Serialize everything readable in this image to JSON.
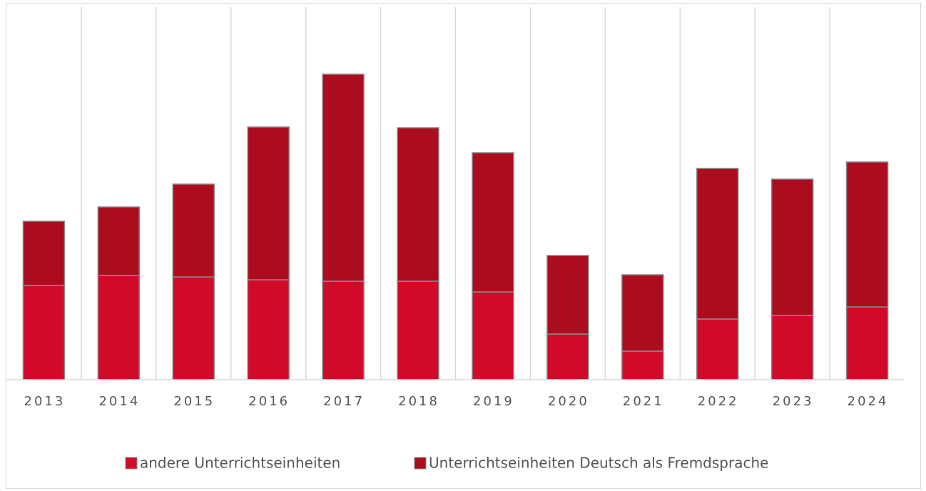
{
  "chart_data": {
    "type": "bar",
    "stacked": true,
    "categories": [
      "2013",
      "2014",
      "2015",
      "2016",
      "2017",
      "2018",
      "2019",
      "2020",
      "2021",
      "2022",
      "2023",
      "2024"
    ],
    "series": [
      {
        "name": "andere Unterrichtseinheiten",
        "color": "#d20a2a",
        "values": [
          132,
          146,
          144,
          140,
          138,
          138,
          123,
          64,
          40,
          85,
          90,
          102
        ]
      },
      {
        "name": "Unterrichtseinheiten Deutsch als Fremdsprache",
        "color": "#ab0d1e",
        "values": [
          90,
          96,
          130,
          214,
          290,
          215,
          195,
          110,
          107,
          211,
          191,
          203
        ]
      }
    ],
    "ylim": [
      0,
      522
    ]
  }
}
